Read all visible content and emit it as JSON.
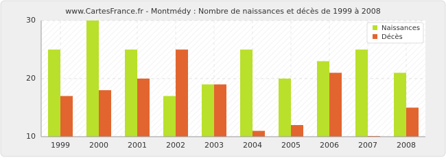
{
  "chart_data": {
    "type": "bar",
    "title": "www.CartesFrance.fr - Montmédy : Nombre de naissances et décès de 1999 à 2008",
    "categories": [
      "1999",
      "2000",
      "2001",
      "2002",
      "2003",
      "2004",
      "2005",
      "2006",
      "2007",
      "2008"
    ],
    "series": [
      {
        "name": "Naissances",
        "color": "#b9e02a",
        "values": [
          25,
          30,
          25,
          17,
          19,
          25,
          20,
          23,
          25,
          21
        ]
      },
      {
        "name": "Décès",
        "color": "#e2652f",
        "values": [
          17,
          18,
          20,
          25,
          19,
          11,
          12,
          21,
          10,
          15
        ]
      }
    ],
    "ylim": [
      10,
      30
    ],
    "yticks": [
      10,
      20,
      30
    ],
    "grid": true,
    "legend": "top-right"
  }
}
